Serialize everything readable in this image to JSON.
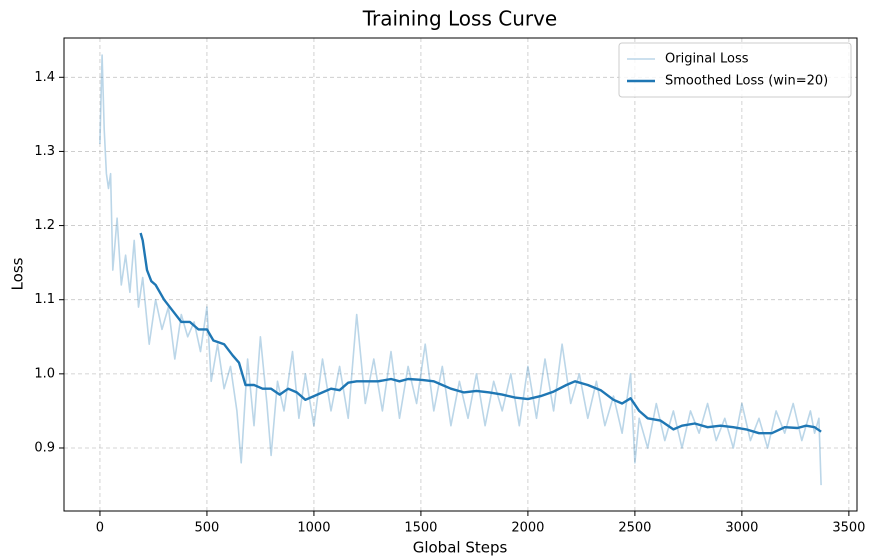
{
  "chart_data": {
    "type": "line",
    "title": "Training Loss Curve",
    "x_label": "Global Steps",
    "y_label": "Loss",
    "xlim": [
      -168,
      3538
    ],
    "ylim": [
      0.815,
      1.453
    ],
    "xticks": [
      0,
      500,
      1000,
      1500,
      2000,
      2500,
      3000,
      3500
    ],
    "yticks": [
      0.9,
      {
        "value": 1,
        "label": "1.0"
      },
      1.1,
      1.2,
      1.3,
      1.4
    ],
    "grid": true,
    "legend": "upper right",
    "series": [
      {
        "name": "Original Loss",
        "color": "#1f77b4",
        "alpha": 0.3,
        "width": 1.6,
        "x": [
          0,
          10,
          20,
          30,
          40,
          50,
          60,
          80,
          100,
          120,
          140,
          160,
          180,
          200,
          230,
          260,
          290,
          320,
          350,
          380,
          410,
          440,
          470,
          500,
          520,
          550,
          580,
          610,
          640,
          660,
          690,
          720,
          750,
          780,
          800,
          830,
          860,
          900,
          930,
          960,
          1000,
          1040,
          1080,
          1120,
          1160,
          1200,
          1240,
          1280,
          1320,
          1360,
          1400,
          1440,
          1480,
          1520,
          1560,
          1600,
          1640,
          1680,
          1720,
          1760,
          1800,
          1840,
          1880,
          1920,
          1960,
          2000,
          2040,
          2080,
          2120,
          2160,
          2200,
          2240,
          2280,
          2320,
          2360,
          2400,
          2440,
          2480,
          2500,
          2520,
          2560,
          2600,
          2640,
          2680,
          2720,
          2760,
          2800,
          2840,
          2880,
          2920,
          2960,
          3000,
          3040,
          3080,
          3120,
          3160,
          3200,
          3240,
          3280,
          3320,
          3340,
          3360,
          3370
        ],
        "values": [
          1.31,
          1.43,
          1.33,
          1.27,
          1.25,
          1.27,
          1.14,
          1.21,
          1.12,
          1.16,
          1.11,
          1.18,
          1.09,
          1.13,
          1.04,
          1.1,
          1.06,
          1.09,
          1.02,
          1.08,
          1.05,
          1.07,
          1.03,
          1.09,
          0.99,
          1.04,
          0.98,
          1.01,
          0.95,
          0.88,
          1.02,
          0.93,
          1.05,
          0.96,
          0.89,
          0.99,
          0.95,
          1.03,
          0.94,
          1.0,
          0.93,
          1.02,
          0.95,
          1.01,
          0.94,
          1.08,
          0.96,
          1.02,
          0.95,
          1.03,
          0.94,
          1.01,
          0.96,
          1.04,
          0.95,
          1.01,
          0.93,
          0.99,
          0.94,
          1.0,
          0.93,
          0.99,
          0.95,
          1.0,
          0.93,
          1.01,
          0.94,
          1.02,
          0.95,
          1.04,
          0.96,
          1.0,
          0.94,
          0.99,
          0.93,
          0.97,
          0.92,
          1.0,
          0.88,
          0.94,
          0.9,
          0.96,
          0.91,
          0.95,
          0.9,
          0.95,
          0.92,
          0.96,
          0.91,
          0.94,
          0.9,
          0.96,
          0.91,
          0.94,
          0.9,
          0.95,
          0.92,
          0.96,
          0.91,
          0.95,
          0.92,
          0.94,
          0.85
        ]
      },
      {
        "name": "Smoothed Loss (win=20)",
        "color": "#1f77b4",
        "alpha": 1,
        "width": 2.4,
        "x": [
          190,
          200,
          220,
          240,
          260,
          300,
          340,
          380,
          420,
          460,
          500,
          530,
          580,
          620,
          650,
          680,
          720,
          760,
          800,
          840,
          880,
          920,
          960,
          1000,
          1040,
          1080,
          1120,
          1160,
          1200,
          1260,
          1300,
          1360,
          1400,
          1440,
          1500,
          1560,
          1600,
          1640,
          1700,
          1760,
          1820,
          1880,
          1940,
          2000,
          2060,
          2120,
          2180,
          2220,
          2280,
          2340,
          2400,
          2440,
          2480,
          2520,
          2560,
          2620,
          2680,
          2720,
          2780,
          2840,
          2900,
          2960,
          3020,
          3080,
          3140,
          3200,
          3260,
          3300,
          3340,
          3370
        ],
        "values": [
          1.19,
          1.18,
          1.14,
          1.125,
          1.12,
          1.1,
          1.085,
          1.07,
          1.07,
          1.06,
          1.06,
          1.045,
          1.04,
          1.025,
          1.015,
          0.985,
          0.985,
          0.98,
          0.98,
          0.972,
          0.98,
          0.975,
          0.965,
          0.97,
          0.975,
          0.98,
          0.978,
          0.988,
          0.99,
          0.99,
          0.99,
          0.993,
          0.99,
          0.993,
          0.992,
          0.99,
          0.985,
          0.98,
          0.975,
          0.977,
          0.975,
          0.972,
          0.968,
          0.966,
          0.97,
          0.976,
          0.985,
          0.99,
          0.985,
          0.978,
          0.965,
          0.96,
          0.967,
          0.95,
          0.94,
          0.937,
          0.925,
          0.93,
          0.933,
          0.928,
          0.93,
          0.928,
          0.925,
          0.92,
          0.92,
          0.928,
          0.927,
          0.93,
          0.928,
          0.922
        ]
      }
    ]
  }
}
